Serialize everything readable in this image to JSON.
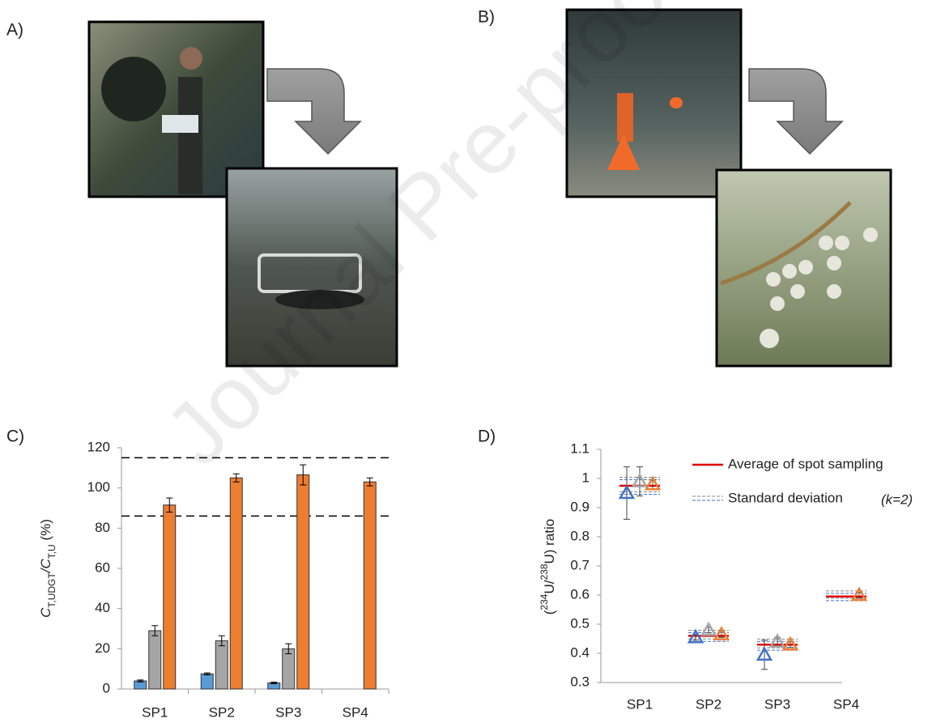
{
  "panels": [
    "A)",
    "B)",
    "C)",
    "D)"
  ],
  "watermark": "Journal Pre-proof",
  "chart_data": [
    {
      "type": "bar",
      "categories": [
        "SP1",
        "SP2",
        "SP3",
        "SP4"
      ],
      "y_label_parts": [
        "C",
        "T,UDGT",
        "/C",
        "T,U",
        " (%)"
      ],
      "ylim": [
        0,
        120
      ],
      "yticks": [
        0,
        20,
        40,
        60,
        80,
        100,
        120
      ],
      "ref_lines": [
        115,
        86
      ],
      "series": [
        {
          "color": "#5b9bd5",
          "values": [
            4,
            7.5,
            3,
            null
          ],
          "errors": [
            0.5,
            0.5,
            0.4,
            null
          ]
        },
        {
          "color": "#a5a5a5",
          "values": [
            29,
            24,
            20,
            null
          ],
          "errors": [
            2.5,
            2.5,
            2.5,
            null
          ]
        },
        {
          "color": "#ed7d31",
          "values": [
            91.5,
            105,
            106.5,
            103
          ],
          "errors": [
            3.5,
            2,
            5,
            2
          ]
        }
      ]
    },
    {
      "type": "scatter",
      "categories": [
        "SP1",
        "SP2",
        "SP3",
        "SP4"
      ],
      "y_label_parts": [
        "(",
        "234",
        "U/",
        "238",
        "U) ratio"
      ],
      "ylim": [
        0.3,
        1.1
      ],
      "yticks": [
        0.3,
        0.4,
        0.5,
        0.6,
        0.7,
        0.8,
        0.9,
        1,
        1.1
      ],
      "series": [
        {
          "color": "#4472c4",
          "values": [
            0.95,
            0.455,
            0.395,
            null
          ],
          "errors": [
            0.09,
            0.01,
            0.05,
            null
          ]
        },
        {
          "color": "#a5a5a5",
          "values": [
            0.99,
            0.48,
            0.44,
            null
          ],
          "errors": [
            0.05,
            0.01,
            0.015,
            null
          ]
        },
        {
          "color": "#ed7d31",
          "values": [
            0.98,
            0.465,
            0.43,
            0.6
          ],
          "errors": [
            0.015,
            0.01,
            0.01,
            0.01
          ]
        }
      ],
      "average": {
        "color": "#e00000",
        "values": [
          0.975,
          0.46,
          0.43,
          0.595
        ]
      },
      "std_dev": {
        "lower": [
          0.95,
          0.445,
          0.415,
          0.585
        ],
        "upper": [
          1.0,
          0.475,
          0.445,
          0.61
        ]
      },
      "legend": [
        "Average of spot sampling",
        "Standard deviation"
      ],
      "legend_note": "(k=2)"
    }
  ]
}
